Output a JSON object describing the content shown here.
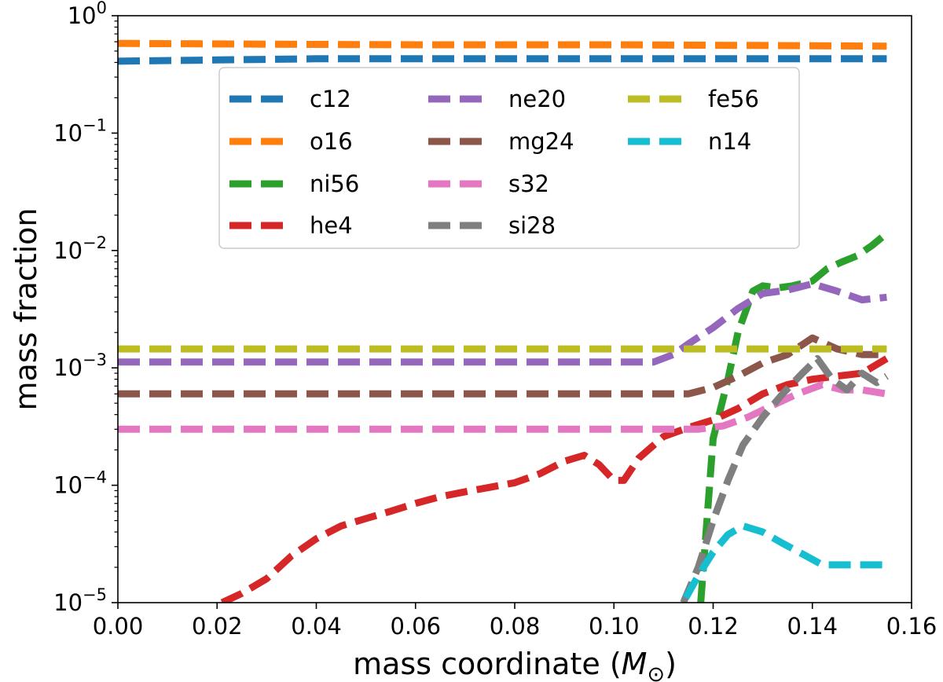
{
  "chart_data": {
    "type": "line",
    "title": "",
    "xlabel": "mass coordinate",
    "xlabel_symbol": "M",
    "xlabel_subscript": "⊙",
    "ylabel": "mass fraction",
    "xlim": [
      0.0,
      0.16
    ],
    "ylim": [
      1e-05,
      1
    ],
    "yscale": "log",
    "grid": false,
    "legend_position": "upper-center",
    "x_ticks": [
      {
        "value": 0.0,
        "label": "0.00"
      },
      {
        "value": 0.02,
        "label": "0.02"
      },
      {
        "value": 0.04,
        "label": "0.04"
      },
      {
        "value": 0.06,
        "label": "0.06"
      },
      {
        "value": 0.08,
        "label": "0.08"
      },
      {
        "value": 0.1,
        "label": "0.10"
      },
      {
        "value": 0.12,
        "label": "0.12"
      },
      {
        "value": 0.14,
        "label": "0.14"
      },
      {
        "value": 0.16,
        "label": "0.16"
      }
    ],
    "y_ticks": [
      {
        "exp": -5,
        "base": "10",
        "sup": "−5"
      },
      {
        "exp": -4,
        "base": "10",
        "sup": "−4"
      },
      {
        "exp": -3,
        "base": "10",
        "sup": "−3"
      },
      {
        "exp": -2,
        "base": "10",
        "sup": "−2"
      },
      {
        "exp": -1,
        "base": "10",
        "sup": "−1"
      },
      {
        "exp": 0,
        "base": "10",
        "sup": "0"
      }
    ],
    "series": [
      {
        "name": "c12",
        "color": "#1f77b4",
        "points": [
          [
            0.0,
            0.41
          ],
          [
            0.02,
            0.42
          ],
          [
            0.04,
            0.43
          ],
          [
            0.06,
            0.43
          ],
          [
            0.08,
            0.43
          ],
          [
            0.1,
            0.43
          ],
          [
            0.12,
            0.43
          ],
          [
            0.14,
            0.43
          ],
          [
            0.155,
            0.43
          ]
        ]
      },
      {
        "name": "o16",
        "color": "#ff7f0e",
        "points": [
          [
            0.0,
            0.58
          ],
          [
            0.02,
            0.575
          ],
          [
            0.04,
            0.57
          ],
          [
            0.06,
            0.565
          ],
          [
            0.08,
            0.565
          ],
          [
            0.1,
            0.565
          ],
          [
            0.12,
            0.56
          ],
          [
            0.14,
            0.555
          ],
          [
            0.155,
            0.55
          ]
        ]
      },
      {
        "name": "ni56",
        "color": "#2ca02c",
        "points": [
          [
            0.1175,
            1e-05
          ],
          [
            0.12,
            0.00025
          ],
          [
            0.123,
            0.0008
          ],
          [
            0.125,
            0.002
          ],
          [
            0.128,
            0.0045
          ],
          [
            0.13,
            0.005
          ],
          [
            0.133,
            0.0048
          ],
          [
            0.136,
            0.005
          ],
          [
            0.14,
            0.0055
          ],
          [
            0.143,
            0.007
          ],
          [
            0.146,
            0.008
          ],
          [
            0.149,
            0.009
          ],
          [
            0.152,
            0.011
          ],
          [
            0.155,
            0.014
          ]
        ]
      },
      {
        "name": "he4",
        "color": "#d62728",
        "points": [
          [
            0.021,
            1e-05
          ],
          [
            0.025,
            1.2e-05
          ],
          [
            0.03,
            1.6e-05
          ],
          [
            0.035,
            2.5e-05
          ],
          [
            0.04,
            3.5e-05
          ],
          [
            0.045,
            4.5e-05
          ],
          [
            0.05,
            5.2e-05
          ],
          [
            0.055,
            6e-05
          ],
          [
            0.06,
            7e-05
          ],
          [
            0.065,
            8e-05
          ],
          [
            0.07,
            8.8e-05
          ],
          [
            0.075,
            9.6e-05
          ],
          [
            0.08,
            0.000105
          ],
          [
            0.085,
            0.000125
          ],
          [
            0.09,
            0.00016
          ],
          [
            0.094,
            0.00018
          ],
          [
            0.097,
            0.00015
          ],
          [
            0.1,
            0.00011
          ],
          [
            0.102,
            0.00011
          ],
          [
            0.105,
            0.00017
          ],
          [
            0.11,
            0.00026
          ],
          [
            0.115,
            0.00031
          ],
          [
            0.12,
            0.00036
          ],
          [
            0.125,
            0.00045
          ],
          [
            0.13,
            0.0006
          ],
          [
            0.135,
            0.00072
          ],
          [
            0.14,
            0.0008
          ],
          [
            0.145,
            0.00085
          ],
          [
            0.15,
            0.0009
          ],
          [
            0.155,
            0.0012
          ]
        ]
      },
      {
        "name": "ne20",
        "color": "#9467bd",
        "points": [
          [
            0.0,
            0.00112
          ],
          [
            0.05,
            0.00112
          ],
          [
            0.1,
            0.00112
          ],
          [
            0.108,
            0.00112
          ],
          [
            0.112,
            0.0013
          ],
          [
            0.115,
            0.0016
          ],
          [
            0.12,
            0.0022
          ],
          [
            0.125,
            0.0032
          ],
          [
            0.13,
            0.0043
          ],
          [
            0.135,
            0.0046
          ],
          [
            0.14,
            0.0052
          ],
          [
            0.145,
            0.0045
          ],
          [
            0.15,
            0.0038
          ],
          [
            0.155,
            0.004
          ]
        ]
      },
      {
        "name": "mg24",
        "color": "#8c564b",
        "points": [
          [
            0.0,
            0.0006
          ],
          [
            0.05,
            0.0006
          ],
          [
            0.1,
            0.0006
          ],
          [
            0.115,
            0.0006
          ],
          [
            0.12,
            0.00068
          ],
          [
            0.125,
            0.00085
          ],
          [
            0.13,
            0.0011
          ],
          [
            0.135,
            0.0013
          ],
          [
            0.14,
            0.0018
          ],
          [
            0.145,
            0.00145
          ],
          [
            0.15,
            0.0013
          ],
          [
            0.155,
            0.0013
          ]
        ]
      },
      {
        "name": "s32",
        "color": "#e377c2",
        "points": [
          [
            0.0,
            0.0003
          ],
          [
            0.05,
            0.0003
          ],
          [
            0.1,
            0.0003
          ],
          [
            0.117,
            0.0003
          ],
          [
            0.122,
            0.00032
          ],
          [
            0.127,
            0.00038
          ],
          [
            0.132,
            0.00048
          ],
          [
            0.137,
            0.0006
          ],
          [
            0.142,
            0.00072
          ],
          [
            0.146,
            0.00065
          ],
          [
            0.15,
            0.00065
          ],
          [
            0.155,
            0.0006
          ]
        ]
      },
      {
        "name": "si28",
        "color": "#7f7f7f",
        "points": [
          [
            0.114,
            1e-05
          ],
          [
            0.117,
            2e-05
          ],
          [
            0.12,
            5e-05
          ],
          [
            0.123,
            0.00011
          ],
          [
            0.126,
            0.00022
          ],
          [
            0.13,
            0.00038
          ],
          [
            0.134,
            0.0006
          ],
          [
            0.138,
            0.0009
          ],
          [
            0.141,
            0.0012
          ],
          [
            0.144,
            0.0008
          ],
          [
            0.147,
            0.00065
          ],
          [
            0.15,
            0.0009
          ],
          [
            0.153,
            0.00075
          ],
          [
            0.155,
            0.00085
          ]
        ]
      },
      {
        "name": "fe56",
        "color": "#bcbd22",
        "points": [
          [
            0.0,
            0.00145
          ],
          [
            0.05,
            0.00145
          ],
          [
            0.1,
            0.00145
          ],
          [
            0.155,
            0.00145
          ]
        ]
      },
      {
        "name": "n14",
        "color": "#17becf",
        "points": [
          [
            0.1145,
            1.1e-05
          ],
          [
            0.117,
            1.7e-05
          ],
          [
            0.12,
            2.7e-05
          ],
          [
            0.123,
            3.8e-05
          ],
          [
            0.126,
            4.5e-05
          ],
          [
            0.13,
            4e-05
          ],
          [
            0.134,
            3.2e-05
          ],
          [
            0.138,
            2.6e-05
          ],
          [
            0.142,
            2.1e-05
          ],
          [
            0.146,
            2.1e-05
          ],
          [
            0.15,
            2.1e-05
          ],
          [
            0.155,
            2.1e-05
          ]
        ]
      }
    ]
  }
}
